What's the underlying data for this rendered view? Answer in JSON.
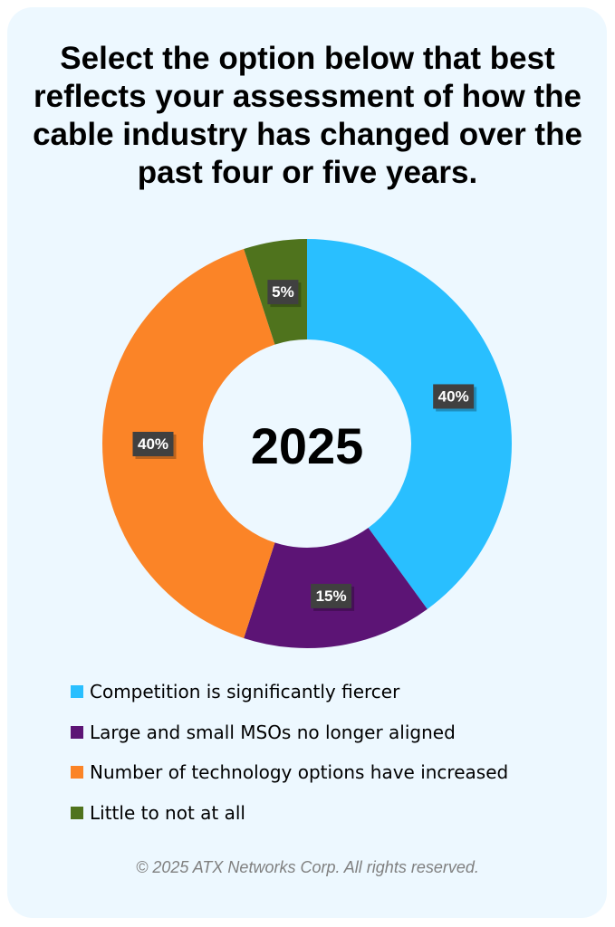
{
  "chart_data": {
    "type": "pie",
    "donut": true,
    "title": "Select the option below that best reflects your assessment of how the cable industry has changed over the past four or five years.",
    "center_label": "2025",
    "categories": [
      "Competition is significantly fiercer",
      "Large and small MSOs no longer aligned",
      "Number of technology options have increased",
      "Little to not at all"
    ],
    "values": [
      40,
      15,
      40,
      5
    ],
    "data_labels": [
      "40%",
      "15%",
      "40%",
      "5%"
    ],
    "colors": [
      "#29bfff",
      "#5c1475",
      "#fb8427",
      "#4f731d"
    ],
    "legend_placement": "bottom"
  },
  "footer": {
    "copyright": "© 2025 ATX Networks Corp. All rights reserved."
  }
}
